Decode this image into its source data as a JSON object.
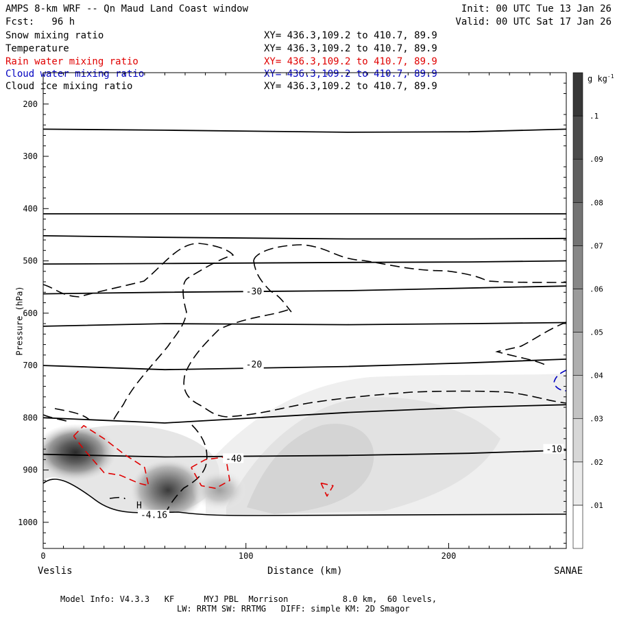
{
  "header": {
    "title": "AMPS 8-km WRF -- Qn Maud Land Coast window",
    "init": "Init: 00 UTC Tue 13 Jan 26",
    "fcst": "Fcst:   96 h",
    "valid": "Valid: 00 UTC Sat 17 Jan 26"
  },
  "fields": [
    {
      "name": "Snow mixing ratio",
      "xy": "XY= 436.3,109.2 to 410.7, 89.9",
      "color": "#000000"
    },
    {
      "name": "Temperature",
      "xy": "XY= 436.3,109.2 to 410.7, 89.9",
      "color": "#000000"
    },
    {
      "name": "Rain water mixing ratio",
      "xy": "XY= 436.3,109.2 to 410.7, 89.9",
      "color": "#e00000"
    },
    {
      "name": "Cloud water mixing ratio",
      "xy": "XY= 436.3,109.2 to 410.7, 89.9",
      "color": "#0000c0"
    },
    {
      "name": "Cloud ice mixing ratio",
      "xy": "XY= 436.3,109.2 to 410.7, 89.9",
      "color": "#000000"
    }
  ],
  "footer": {
    "line1": "Model Info: V4.3.3   KF      MYJ PBL  Morrison           8.0 km,  60 levels,",
    "line2": "LW: RRTM SW: RRTMG   DIFF: simple KM: 2D Smagor"
  },
  "chart_data": {
    "type": "cross-section",
    "xlabel": "Distance (km)",
    "ylabel": "Pressure (hPa)",
    "xlim": [
      0,
      258
    ],
    "ylim": [
      1050,
      140
    ],
    "x_ticks": [
      0,
      100,
      200
    ],
    "y_ticks": [
      200,
      300,
      400,
      500,
      600,
      700,
      800,
      900,
      1000
    ],
    "left_endpoint": "Veslis",
    "right_endpoint": "SANAE",
    "colorbar": {
      "unit": "g kg",
      "unit_exp": "-1",
      "levels": [
        ".01",
        ".02",
        ".03",
        ".04",
        ".05",
        ".06",
        ".07",
        ".08",
        ".09",
        ".1"
      ]
    },
    "temperature_isotherms": [
      {
        "p": [
          248,
          250,
          254,
          253,
          248
        ],
        "x": [
          0,
          60,
          150,
          210,
          258
        ]
      },
      {
        "p": [
          410,
          410,
          410,
          410,
          410
        ],
        "x": [
          0,
          60,
          150,
          210,
          258
        ]
      },
      {
        "p": [
          452,
          455,
          458,
          458,
          457
        ],
        "x": [
          0,
          60,
          150,
          210,
          258
        ]
      },
      {
        "p": [
          506,
          505,
          503,
          502,
          500
        ],
        "x": [
          0,
          60,
          150,
          210,
          258
        ]
      },
      {
        "p": [
          563,
          560,
          557,
          552,
          548
        ],
        "x": [
          0,
          60,
          150,
          210,
          258
        ],
        "label": "-30",
        "label_x": 100
      },
      {
        "p": [
          625,
          620,
          622,
          620,
          618
        ],
        "x": [
          0,
          60,
          150,
          210,
          258
        ]
      },
      {
        "p": [
          700,
          708,
          702,
          695,
          688
        ],
        "x": [
          0,
          60,
          150,
          210,
          258
        ],
        "label": "-20",
        "label_x": 100
      },
      {
        "p": [
          800,
          810,
          790,
          780,
          775
        ],
        "x": [
          0,
          60,
          150,
          210,
          258
        ]
      },
      {
        "p": [
          870,
          875,
          872,
          868,
          862
        ],
        "x": [
          0,
          60,
          150,
          210,
          258
        ],
        "label": "-10",
        "label_x": 248
      }
    ],
    "temperature_labels": [
      {
        "text": "-30",
        "x": 100,
        "p": 560
      },
      {
        "text": "-20",
        "x": 100,
        "p": 700
      },
      {
        "text": "-10",
        "x": 248,
        "p": 862
      },
      {
        "text": "-40",
        "x": 90,
        "p": 880
      },
      {
        "text": "-4.16",
        "x": 48,
        "p": 988
      }
    ],
    "high_marker": {
      "text": "H",
      "x": 46,
      "p": 968
    },
    "snow_max_gkg": 0.105,
    "rain_contours": [
      {
        "x": [
          15,
          20,
          30,
          40,
          50,
          52,
          47,
          38,
          30,
          20,
          15
        ],
        "p": [
          835,
          815,
          840,
          870,
          895,
          930,
          925,
          910,
          905,
          860,
          835
        ]
      },
      {
        "x": [
          73,
          80,
          90,
          92,
          85,
          78,
          73
        ],
        "p": [
          895,
          880,
          875,
          920,
          935,
          930,
          895
        ]
      },
      {
        "x": [
          137,
          143,
          140,
          137
        ],
        "p": [
          925,
          930,
          950,
          925
        ]
      }
    ]
  }
}
